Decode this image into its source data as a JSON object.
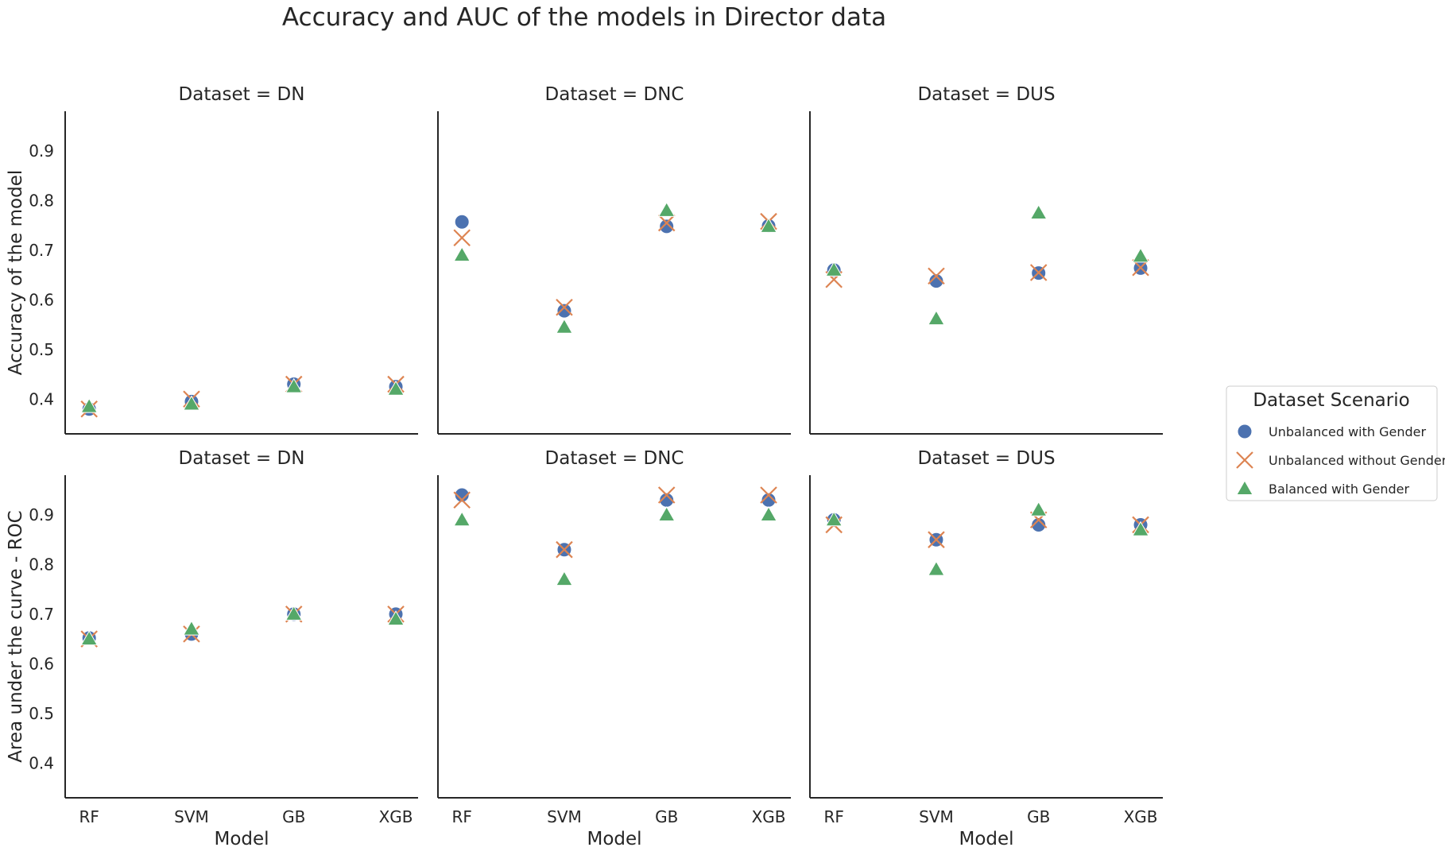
{
  "chart_data": {
    "type": "scatter",
    "title": "Accuracy and AUC of the models in Director data",
    "categories": [
      "RF",
      "SVM",
      "GB",
      "XGB"
    ],
    "xlabel": "Model",
    "legend": {
      "title": "Dataset Scenario",
      "placement": "right",
      "entries": [
        {
          "name": "Unbalanced with Gender",
          "color": "#4c72b0",
          "marker": "circle"
        },
        {
          "name": "Unbalanced without Gender",
          "color": "#dd8452",
          "marker": "x"
        },
        {
          "name": "Balanced with Gender",
          "color": "#55a868",
          "marker": "triangle"
        }
      ]
    },
    "rows": [
      {
        "ylabel": "Accuracy of the model",
        "ylim": [
          0.33,
          0.98
        ],
        "yticks": [
          "0.4",
          "0.5",
          "0.6",
          "0.7",
          "0.8",
          "0.9"
        ]
      },
      {
        "ylabel": "Area under the curve - ROC",
        "ylim": [
          0.33,
          0.98
        ],
        "yticks": [
          "0.4",
          "0.5",
          "0.6",
          "0.7",
          "0.8",
          "0.9"
        ]
      }
    ],
    "panels": [
      {
        "title": "Dataset = DN",
        "row": 0,
        "col": 0,
        "series": [
          {
            "name": "Unbalanced with Gender",
            "values": [
              0.38,
              0.395,
              0.43,
              0.425
            ]
          },
          {
            "name": "Unbalanced without Gender",
            "values": [
              0.38,
              0.4,
              0.43,
              0.43
            ]
          },
          {
            "name": "Balanced with Gender",
            "values": [
              0.385,
              0.39,
              0.425,
              0.42
            ]
          }
        ]
      },
      {
        "title": "Dataset = DNC",
        "row": 0,
        "col": 1,
        "series": [
          {
            "name": "Unbalanced with Gender",
            "values": [
              0.757,
              0.578,
              0.748,
              0.749
            ]
          },
          {
            "name": "Unbalanced without Gender",
            "values": [
              0.725,
              0.585,
              0.755,
              0.758
            ]
          },
          {
            "name": "Balanced with Gender",
            "values": [
              0.69,
              0.545,
              0.78,
              0.748
            ]
          }
        ]
      },
      {
        "title": "Dataset = DUS",
        "row": 0,
        "col": 2,
        "series": [
          {
            "name": "Unbalanced with Gender",
            "values": [
              0.66,
              0.638,
              0.654,
              0.664
            ]
          },
          {
            "name": "Unbalanced without Gender",
            "values": [
              0.641,
              0.648,
              0.655,
              0.665
            ]
          },
          {
            "name": "Balanced with Gender",
            "values": [
              0.66,
              0.562,
              0.775,
              0.688
            ]
          }
        ]
      },
      {
        "title": "Dataset = DN",
        "row": 1,
        "col": 0,
        "series": [
          {
            "name": "Unbalanced with Gender",
            "values": [
              0.652,
              0.66,
              0.7,
              0.7
            ]
          },
          {
            "name": "Unbalanced without Gender",
            "values": [
              0.65,
              0.66,
              0.7,
              0.7
            ]
          },
          {
            "name": "Balanced with Gender",
            "values": [
              0.65,
              0.67,
              0.7,
              0.69
            ]
          }
        ]
      },
      {
        "title": "Dataset = DNC",
        "row": 1,
        "col": 1,
        "series": [
          {
            "name": "Unbalanced with Gender",
            "values": [
              0.94,
              0.83,
              0.93,
              0.93
            ]
          },
          {
            "name": "Unbalanced without Gender",
            "values": [
              0.93,
              0.83,
              0.94,
              0.94
            ]
          },
          {
            "name": "Balanced with Gender",
            "values": [
              0.89,
              0.77,
              0.9,
              0.9
            ]
          }
        ]
      },
      {
        "title": "Dataset = DUS",
        "row": 1,
        "col": 2,
        "series": [
          {
            "name": "Unbalanced with Gender",
            "values": [
              0.89,
              0.85,
              0.88,
              0.88
            ]
          },
          {
            "name": "Unbalanced without Gender",
            "values": [
              0.88,
              0.85,
              0.89,
              0.88
            ]
          },
          {
            "name": "Balanced with Gender",
            "values": [
              0.89,
              0.79,
              0.91,
              0.87
            ]
          }
        ]
      }
    ]
  }
}
